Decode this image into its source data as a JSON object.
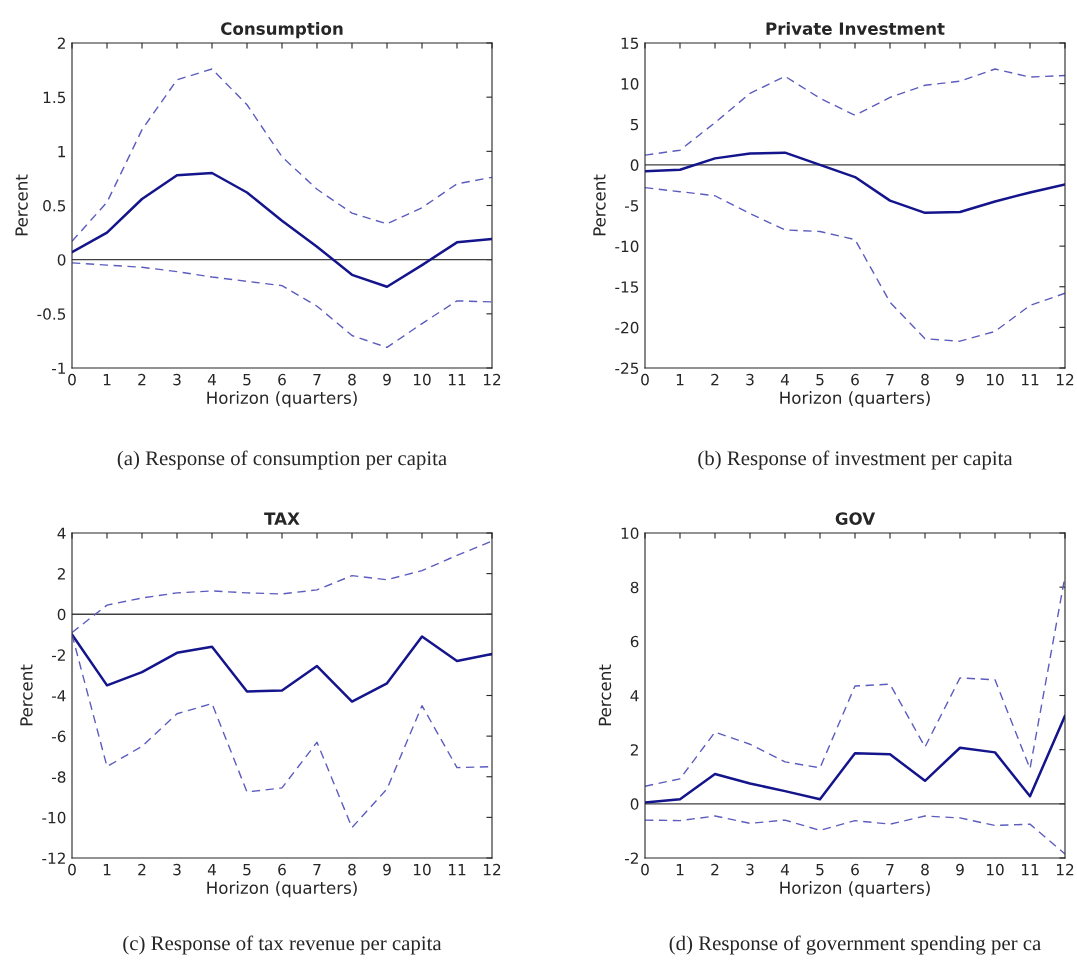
{
  "chart_data": [
    {
      "type": "line",
      "title": "Consumption",
      "xlabel": "Horizon (quarters)",
      "ylabel": "Percent",
      "x": [
        0,
        1,
        2,
        3,
        4,
        5,
        6,
        7,
        8,
        9,
        10,
        11,
        12
      ],
      "xlim": [
        0,
        12
      ],
      "xticks": [
        0,
        1,
        2,
        3,
        4,
        5,
        6,
        7,
        8,
        9,
        10,
        11,
        12
      ],
      "ylim": [
        -1,
        2
      ],
      "yticks": [
        -1,
        -0.5,
        0,
        0.5,
        1,
        1.5,
        2
      ],
      "grid": false,
      "ref_lines": [
        {
          "axis": "y",
          "value": 0,
          "color": "#404040"
        }
      ],
      "annotations": [
        "(a) Response of consumption per capita"
      ],
      "series": [
        {
          "color": "#14148c",
          "line_style": "solid",
          "values": [
            0.07,
            0.25,
            0.56,
            0.78,
            0.8,
            0.62,
            0.36,
            0.12,
            -0.14,
            -0.25,
            -0.05,
            0.16,
            0.19
          ]
        },
        {
          "color": "#5c5cbe",
          "line_style": "dashed",
          "values": [
            0.17,
            0.53,
            1.2,
            1.66,
            1.76,
            1.43,
            0.95,
            0.65,
            0.43,
            0.33,
            0.48,
            0.7,
            0.76
          ]
        },
        {
          "color": "#5c5cbe",
          "line_style": "dashed",
          "values": [
            -0.03,
            -0.05,
            -0.07,
            -0.11,
            -0.16,
            -0.2,
            -0.24,
            -0.43,
            -0.7,
            -0.81,
            -0.59,
            -0.38,
            -0.39
          ]
        }
      ]
    },
    {
      "type": "line",
      "title": "Private Investment",
      "xlabel": "Horizon (quarters)",
      "ylabel": "Percent",
      "x": [
        0,
        1,
        2,
        3,
        4,
        5,
        6,
        7,
        8,
        9,
        10,
        11,
        12
      ],
      "xlim": [
        0,
        12
      ],
      "xticks": [
        0,
        1,
        2,
        3,
        4,
        5,
        6,
        7,
        8,
        9,
        10,
        11,
        12
      ],
      "ylim": [
        -25,
        15
      ],
      "yticks": [
        -25,
        -20,
        -15,
        -10,
        -5,
        0,
        5,
        10,
        15
      ],
      "grid": false,
      "ref_lines": [
        {
          "axis": "y",
          "value": 0,
          "color": "#404040"
        }
      ],
      "annotations": [
        "(b) Response of investment per capita"
      ],
      "series": [
        {
          "color": "#14148c",
          "line_style": "solid",
          "values": [
            -0.8,
            -0.6,
            0.8,
            1.4,
            1.5,
            0,
            -1.5,
            -4.4,
            -5.9,
            -5.8,
            -4.5,
            -3.4,
            -2.4
          ]
        },
        {
          "color": "#5c5cbe",
          "line_style": "dashed",
          "values": [
            1.2,
            1.8,
            5.2,
            8.8,
            10.9,
            8.2,
            6.1,
            8.3,
            9.8,
            10.3,
            11.8,
            10.8,
            11.0
          ]
        },
        {
          "color": "#5c5cbe",
          "line_style": "dashed",
          "values": [
            -2.8,
            -3.3,
            -3.8,
            -6.0,
            -8.0,
            -8.2,
            -9.2,
            -16.9,
            -21.4,
            -21.7,
            -20.5,
            -17.3,
            -15.8
          ]
        }
      ]
    },
    {
      "type": "line",
      "title": "TAX",
      "xlabel": "Horizon (quarters)",
      "ylabel": "Percent",
      "x": [
        0,
        1,
        2,
        3,
        4,
        5,
        6,
        7,
        8,
        9,
        10,
        11,
        12
      ],
      "xlim": [
        0,
        12
      ],
      "xticks": [
        0,
        1,
        2,
        3,
        4,
        5,
        6,
        7,
        8,
        9,
        10,
        11,
        12
      ],
      "ylim": [
        -12,
        4
      ],
      "yticks": [
        -12,
        -10,
        -8,
        -6,
        -4,
        -2,
        0,
        2,
        4
      ],
      "grid": false,
      "ref_lines": [
        {
          "axis": "y",
          "value": 0,
          "color": "#404040"
        }
      ],
      "annotations": [
        "(c) Response of tax revenue per capita"
      ],
      "series": [
        {
          "color": "#14148c",
          "line_style": "solid",
          "values": [
            -1.0,
            -3.5,
            -2.85,
            -1.9,
            -1.6,
            -3.8,
            -3.75,
            -2.55,
            -4.3,
            -3.4,
            -1.1,
            -2.3,
            -1.95
          ]
        },
        {
          "color": "#5c5cbe",
          "line_style": "dashed",
          "values": [
            -0.9,
            0.45,
            0.8,
            1.05,
            1.15,
            1.05,
            1.0,
            1.2,
            1.9,
            1.7,
            2.15,
            2.9,
            3.6
          ]
        },
        {
          "color": "#5c5cbe",
          "line_style": "dashed",
          "values": [
            -1.0,
            -7.5,
            -6.5,
            -4.9,
            -4.4,
            -8.75,
            -8.55,
            -6.3,
            -10.5,
            -8.6,
            -4.5,
            -7.55,
            -7.5
          ]
        }
      ]
    },
    {
      "type": "line",
      "title": "GOV",
      "xlabel": "Horizon (quarters)",
      "ylabel": "Percent",
      "x": [
        0,
        1,
        2,
        3,
        4,
        5,
        6,
        7,
        8,
        9,
        10,
        11,
        12
      ],
      "xlim": [
        0,
        12
      ],
      "xticks": [
        0,
        1,
        2,
        3,
        4,
        5,
        6,
        7,
        8,
        9,
        10,
        11,
        12
      ],
      "ylim": [
        -2,
        10
      ],
      "yticks": [
        -2,
        0,
        2,
        4,
        6,
        8,
        10
      ],
      "grid": false,
      "ref_lines": [
        {
          "axis": "y",
          "value": 0,
          "color": "#404040"
        }
      ],
      "annotations": [
        "(d) Response of government spending per ca"
      ],
      "series": [
        {
          "color": "#14148c",
          "line_style": "solid",
          "values": [
            0.05,
            0.17,
            1.1,
            0.75,
            0.47,
            0.17,
            1.87,
            1.83,
            0.85,
            2.07,
            1.9,
            0.28,
            3.25
          ]
        },
        {
          "color": "#5c5cbe",
          "line_style": "dashed",
          "values": [
            0.65,
            0.92,
            2.65,
            2.2,
            1.55,
            1.33,
            4.35,
            4.42,
            2.1,
            4.65,
            4.58,
            1.3,
            8.4
          ]
        },
        {
          "color": "#5c5cbe",
          "line_style": "dashed",
          "values": [
            -0.6,
            -0.62,
            -0.45,
            -0.72,
            -0.6,
            -0.98,
            -0.62,
            -0.75,
            -0.45,
            -0.52,
            -0.8,
            -0.75,
            -1.85
          ]
        }
      ]
    }
  ]
}
